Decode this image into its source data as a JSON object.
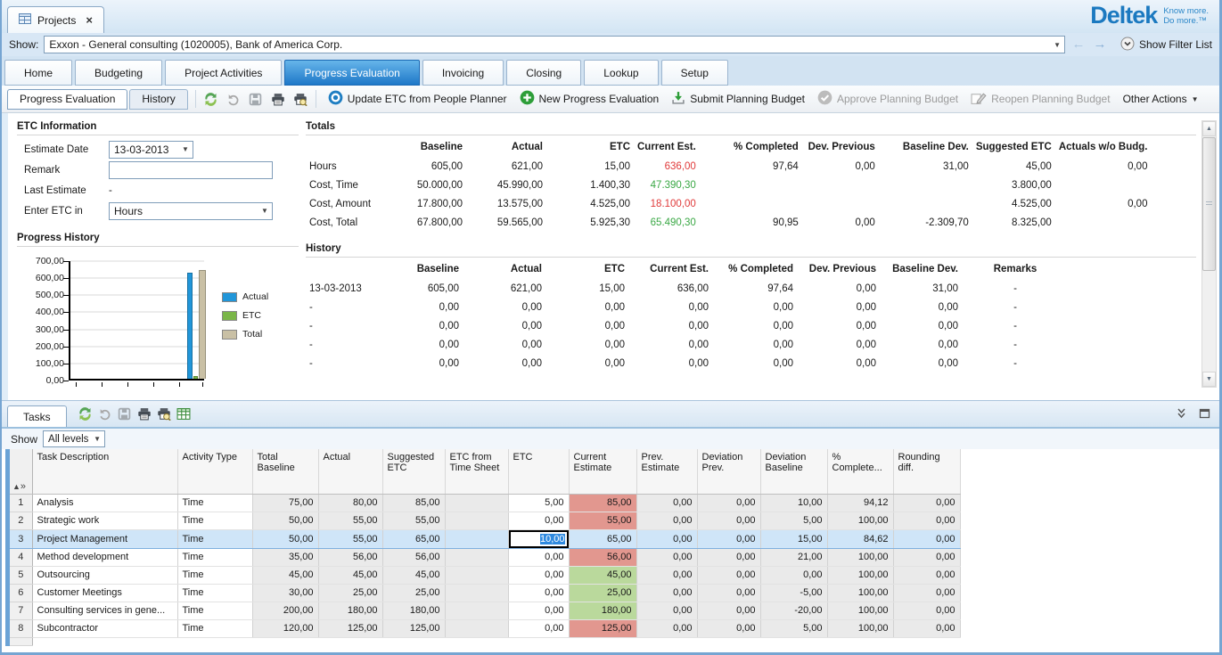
{
  "window": {
    "tab_title": "Projects"
  },
  "brand": {
    "name": "Deltek",
    "tagline1": "Know more.",
    "tagline2": "Do more.™"
  },
  "filter_bar": {
    "label": "Show:",
    "value": "Exxon - General consulting (1020005), Bank of America Corp.",
    "show_filter_list": "Show Filter List"
  },
  "nav_tabs": [
    {
      "label": "Home",
      "active": false
    },
    {
      "label": "Budgeting",
      "active": false
    },
    {
      "label": "Project Activities",
      "active": false
    },
    {
      "label": "Progress Evaluation",
      "active": true
    },
    {
      "label": "Invoicing",
      "active": false
    },
    {
      "label": "Closing",
      "active": false
    },
    {
      "label": "Lookup",
      "active": false
    },
    {
      "label": "Setup",
      "active": false
    }
  ],
  "toolbar": {
    "subtabs": [
      "Progress Evaluation",
      "History"
    ],
    "icon_buttons": [
      "refresh",
      "undo",
      "save",
      "print",
      "print-preview"
    ],
    "actions": [
      {
        "icon": "update-etc-icon",
        "label": "Update ETC from People Planner",
        "enabled": true
      },
      {
        "icon": "new-icon",
        "label": "New Progress Evaluation",
        "enabled": true
      },
      {
        "icon": "submit-icon",
        "label": "Submit Planning Budget",
        "enabled": true
      },
      {
        "icon": "approve-icon",
        "label": "Approve Planning Budget",
        "enabled": false
      },
      {
        "icon": "reopen-icon",
        "label": "Reopen Planning Budget",
        "enabled": false
      }
    ],
    "other_actions": "Other Actions"
  },
  "etc_information": {
    "title": "ETC Information",
    "estimate_date_label": "Estimate Date",
    "estimate_date_value": "13-03-2013",
    "remark_label": "Remark",
    "remark_value": "",
    "last_estimate_label": "Last Estimate",
    "last_estimate_value": "-",
    "enter_etc_label": "Enter ETC in",
    "enter_etc_value": "Hours"
  },
  "progress_history": {
    "title": "Progress History",
    "chart_data": {
      "type": "bar",
      "title": "Progress History",
      "categories": [
        ""
      ],
      "series": [
        {
          "name": "Actual",
          "color": "#2196d9",
          "values": [
            621
          ]
        },
        {
          "name": "ETC",
          "color": "#7ab648",
          "values": [
            15
          ]
        },
        {
          "name": "Total",
          "color": "#c9c0a5",
          "values": [
            636
          ]
        }
      ],
      "ylim": [
        0,
        700
      ],
      "ytick_step": 100,
      "ytick_labels": [
        "0,00",
        "100,00",
        "200,00",
        "300,00",
        "400,00",
        "500,00",
        "600,00",
        "700,00"
      ],
      "xlabel": "",
      "ylabel": "",
      "grid": true,
      "legend_position": "right"
    }
  },
  "totals": {
    "title": "Totals",
    "columns": [
      "Baseline",
      "Actual",
      "ETC",
      "Current Est.",
      "% Completed",
      "Dev. Previous",
      "Baseline Dev.",
      "Suggested ETC",
      "Actuals w/o Budg."
    ],
    "rows": [
      {
        "label": "Hours",
        "values": [
          "605,00",
          "621,00",
          "15,00",
          "636,00",
          "97,64",
          "0,00",
          "31,00",
          "45,00",
          "0,00"
        ],
        "current_est_color": "red"
      },
      {
        "label": "Cost, Time",
        "values": [
          "50.000,00",
          "45.990,00",
          "1.400,30",
          "47.390,30",
          "",
          "",
          "",
          "3.800,00",
          ""
        ],
        "current_est_color": "green"
      },
      {
        "label": "Cost, Amount",
        "values": [
          "17.800,00",
          "13.575,00",
          "4.525,00",
          "18.100,00",
          "",
          "",
          "",
          "4.525,00",
          "0,00"
        ],
        "current_est_color": "red"
      },
      {
        "label": "Cost, Total",
        "values": [
          "67.800,00",
          "59.565,00",
          "5.925,30",
          "65.490,30",
          "90,95",
          "0,00",
          "-2.309,70",
          "8.325,00",
          ""
        ],
        "current_est_color": "green"
      }
    ]
  },
  "history": {
    "title": "History",
    "columns": [
      "",
      "Baseline",
      "Actual",
      "ETC",
      "Current Est.",
      "% Completed",
      "Dev. Previous",
      "Baseline Dev.",
      "Remarks"
    ],
    "rows": [
      [
        "13-03-2013",
        "605,00",
        "621,00",
        "15,00",
        "636,00",
        "97,64",
        "0,00",
        "31,00",
        "-"
      ],
      [
        "-",
        "0,00",
        "0,00",
        "0,00",
        "0,00",
        "0,00",
        "0,00",
        "0,00",
        "-"
      ],
      [
        "-",
        "0,00",
        "0,00",
        "0,00",
        "0,00",
        "0,00",
        "0,00",
        "0,00",
        "-"
      ],
      [
        "-",
        "0,00",
        "0,00",
        "0,00",
        "0,00",
        "0,00",
        "0,00",
        "0,00",
        "-"
      ],
      [
        "-",
        "0,00",
        "0,00",
        "0,00",
        "0,00",
        "0,00",
        "0,00",
        "0,00",
        "-"
      ]
    ]
  },
  "tasks": {
    "tab_label": "Tasks",
    "icon_buttons": [
      "refresh",
      "undo",
      "save",
      "print",
      "print-preview",
      "grid"
    ],
    "show_label": "Show",
    "show_value": "All levels",
    "columns": [
      "Task Description",
      "Activity Type",
      "Total Baseline",
      "Actual",
      "Suggested ETC",
      "ETC from Time Sheet",
      "ETC",
      "Current Estimate",
      "Prev. Estimate",
      "Deviation Prev.",
      "Deviation Baseline",
      "% Complete...",
      "Rounding diff."
    ],
    "selected_row_num": "3",
    "editing": {
      "row_num": "3",
      "column": "ETC",
      "value": "10,00"
    },
    "rows": [
      {
        "num": "1",
        "description": "Analysis",
        "activity_type": "Time",
        "total_baseline": "75,00",
        "actual": "80,00",
        "suggested_etc": "85,00",
        "etc_from_time_sheet": "",
        "etc": "5,00",
        "current_estimate": "85,00",
        "current_estimate_color": "red",
        "prev_estimate": "0,00",
        "deviation_prev": "0,00",
        "deviation_baseline": "10,00",
        "pct_completed": "94,12",
        "rounding_diff": "0,00"
      },
      {
        "num": "2",
        "description": "Strategic work",
        "activity_type": "Time",
        "total_baseline": "50,00",
        "actual": "55,00",
        "suggested_etc": "55,00",
        "etc_from_time_sheet": "",
        "etc": "0,00",
        "current_estimate": "55,00",
        "current_estimate_color": "red",
        "prev_estimate": "0,00",
        "deviation_prev": "0,00",
        "deviation_baseline": "5,00",
        "pct_completed": "100,00",
        "rounding_diff": "0,00"
      },
      {
        "num": "3",
        "description": "Project Management",
        "activity_type": "Time",
        "total_baseline": "50,00",
        "actual": "55,00",
        "suggested_etc": "65,00",
        "etc_from_time_sheet": "",
        "etc": "10,00",
        "current_estimate": "65,00",
        "current_estimate_color": "red",
        "prev_estimate": "0,00",
        "deviation_prev": "0,00",
        "deviation_baseline": "15,00",
        "pct_completed": "84,62",
        "rounding_diff": "0,00"
      },
      {
        "num": "4",
        "description": "Method development",
        "activity_type": "Time",
        "total_baseline": "35,00",
        "actual": "56,00",
        "suggested_etc": "56,00",
        "etc_from_time_sheet": "",
        "etc": "0,00",
        "current_estimate": "56,00",
        "current_estimate_color": "red",
        "prev_estimate": "0,00",
        "deviation_prev": "0,00",
        "deviation_baseline": "21,00",
        "pct_completed": "100,00",
        "rounding_diff": "0,00"
      },
      {
        "num": "5",
        "description": "Outsourcing",
        "activity_type": "Time",
        "total_baseline": "45,00",
        "actual": "45,00",
        "suggested_etc": "45,00",
        "etc_from_time_sheet": "",
        "etc": "0,00",
        "current_estimate": "45,00",
        "current_estimate_color": "green",
        "prev_estimate": "0,00",
        "deviation_prev": "0,00",
        "deviation_baseline": "0,00",
        "pct_completed": "100,00",
        "rounding_diff": "0,00"
      },
      {
        "num": "6",
        "description": "Customer Meetings",
        "activity_type": "Time",
        "total_baseline": "30,00",
        "actual": "25,00",
        "suggested_etc": "25,00",
        "etc_from_time_sheet": "",
        "etc": "0,00",
        "current_estimate": "25,00",
        "current_estimate_color": "green",
        "prev_estimate": "0,00",
        "deviation_prev": "0,00",
        "deviation_baseline": "-5,00",
        "pct_completed": "100,00",
        "rounding_diff": "0,00"
      },
      {
        "num": "7",
        "description": "Consulting services in gene...",
        "activity_type": "Time",
        "total_baseline": "200,00",
        "actual": "180,00",
        "suggested_etc": "180,00",
        "etc_from_time_sheet": "",
        "etc": "0,00",
        "current_estimate": "180,00",
        "current_estimate_color": "green",
        "prev_estimate": "0,00",
        "deviation_prev": "0,00",
        "deviation_baseline": "-20,00",
        "pct_completed": "100,00",
        "rounding_diff": "0,00"
      },
      {
        "num": "8",
        "description": "Subcontractor",
        "activity_type": "Time",
        "total_baseline": "120,00",
        "actual": "125,00",
        "suggested_etc": "125,00",
        "etc_from_time_sheet": "",
        "etc": "0,00",
        "current_estimate": "125,00",
        "current_estimate_color": "red",
        "prev_estimate": "0,00",
        "deviation_prev": "0,00",
        "deviation_baseline": "5,00",
        "pct_completed": "100,00",
        "rounding_diff": "0,00"
      }
    ]
  },
  "colors": {
    "accent_blue": "#1e78c8",
    "red_text": "#e03a3a",
    "green_text": "#3aa845",
    "cell_red": "#e2978f",
    "cell_green": "#bad99c",
    "selected_row": "#cfe5f8"
  }
}
